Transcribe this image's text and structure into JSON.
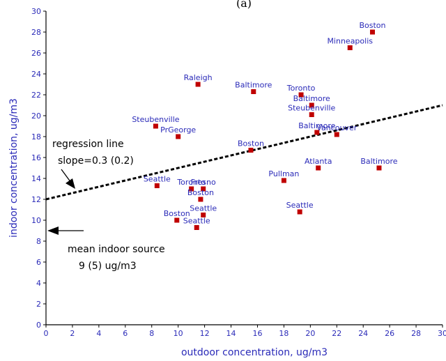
{
  "chart_data": {
    "type": "scatter",
    "title": "(a)",
    "xlabel": "outdoor concentration, ug/m3",
    "ylabel": "indoor concentration, ug/m3",
    "xlim": [
      0,
      30
    ],
    "ylim": [
      0,
      30
    ],
    "xticks": [
      0,
      2,
      4,
      6,
      8,
      10,
      12,
      14,
      16,
      18,
      20,
      22,
      24,
      26,
      28,
      30
    ],
    "yticks": [
      0,
      2,
      4,
      6,
      8,
      10,
      12,
      14,
      16,
      18,
      20,
      22,
      24,
      26,
      28,
      30
    ],
    "grid": false,
    "marker_color": "#c00000",
    "label_color": "#2a2ab8",
    "points": [
      {
        "label": "Boston",
        "x": 24.7,
        "y": 28.0
      },
      {
        "label": "Minneapolis",
        "x": 23.0,
        "y": 26.5
      },
      {
        "label": "Raleigh",
        "x": 11.5,
        "y": 23.0
      },
      {
        "label": "Baltimore",
        "x": 15.7,
        "y": 22.3
      },
      {
        "label": "Toronto",
        "x": 19.3,
        "y": 22.0
      },
      {
        "label": "Baltimore",
        "x": 20.1,
        "y": 21.0
      },
      {
        "label": "Steubenville",
        "x": 20.1,
        "y": 20.1
      },
      {
        "label": "Steubenville",
        "x": 8.3,
        "y": 19.0
      },
      {
        "label": "PrGeorge",
        "x": 10.0,
        "y": 18.0
      },
      {
        "label": "Baltimore",
        "x": 20.5,
        "y": 18.4
      },
      {
        "label": "Vancouver",
        "x": 22.0,
        "y": 18.2
      },
      {
        "label": "Boston",
        "x": 15.5,
        "y": 16.7
      },
      {
        "label": "Atlanta",
        "x": 20.6,
        "y": 15.0
      },
      {
        "label": "Baltimore",
        "x": 25.2,
        "y": 15.0
      },
      {
        "label": "Pullman",
        "x": 18.0,
        "y": 13.8
      },
      {
        "label": "Seattle",
        "x": 8.4,
        "y": 13.3
      },
      {
        "label": "Toronto",
        "x": 11.0,
        "y": 13.0
      },
      {
        "label": "Fresno",
        "x": 11.9,
        "y": 13.0
      },
      {
        "label": "Boston",
        "x": 11.7,
        "y": 12.0
      },
      {
        "label": "Seattle",
        "x": 11.9,
        "y": 10.5
      },
      {
        "label": "Seattle",
        "x": 19.2,
        "y": 10.8
      },
      {
        "label": "Boston",
        "x": 9.9,
        "y": 10.0
      },
      {
        "label": "Seattle",
        "x": 11.4,
        "y": 9.3
      }
    ],
    "regression_line": {
      "x": [
        0,
        30
      ],
      "y": [
        12.0,
        21.0
      ]
    },
    "annotations": {
      "regression_title": "regression line",
      "regression_slope": "slope=0.3 (0.2)",
      "source_title": "mean indoor source",
      "source_value": "9 (5) ug/m3",
      "source_arrow_y": 9
    }
  }
}
